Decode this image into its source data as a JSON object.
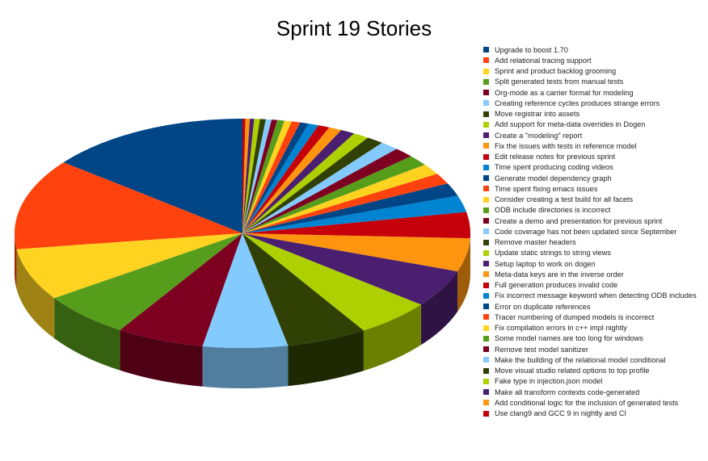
{
  "chart_data": {
    "type": "pie",
    "style": "3d",
    "title": "Sprint 19 Stories",
    "legend_position": "right",
    "categories": [
      "Upgrade to boost 1.70",
      "Add relational tracing support",
      "Sprint and product backlog grooming",
      "Split generated tests from manual tests",
      "Org-mode as a carrier format for modeling",
      "Creating reference cycles produces strange errors",
      "Move registrar into assets",
      "Add support for meta-data overrides in Dogen",
      "Create a \"modeling\" report",
      "Fix the issues with tests in reference model",
      "Edit release notes for previous sprint",
      "Time spent producing coding videos",
      "Generate model dependency graph",
      "Time spent fixing emacs issues",
      "Consider creating a test build for all facets",
      "ODB include directories is incorrect",
      "Create a demo and presentation for previous sprint",
      "Code coverage has not been updated since September",
      "Remove master headers",
      "Update static strings to string views",
      "Setup laptop to work on dogen",
      "Meta-data keys are in the inverse order",
      "Full generation produces invalid code",
      "Fix incorrect message keyword when detecting ODB includes",
      "Error on duplicate references",
      "Tracer numbering of dumped models is incorrect",
      "Fix compilation errors in c++ impl nightly",
      "Some model names are too long for windows",
      "Remove test model sanitizer",
      "Make the building of the relational model conditional",
      "Move visual studio related options to top profile",
      "Fake type in injection.json model",
      "Make all transform contexts code-generated",
      "Add conditional logic for the inclusion of generated tests",
      "Use clang9 and GCC 9 in nightly and CI"
    ],
    "values": [
      14.1,
      12.6,
      7.2,
      6.3,
      6.1,
      5.9,
      5.6,
      5.3,
      5.2,
      4.6,
      3.6,
      2.3,
      1.8,
      1.5,
      1.5,
      1.5,
      1.4,
      1.3,
      1.2,
      1.1,
      1.0,
      0.9,
      0.8,
      0.7,
      0.6,
      0.6,
      0.5,
      0.5,
      0.4,
      0.4,
      0.4,
      0.4,
      0.3,
      0.3,
      0.2
    ],
    "colors": [
      "#004586",
      "#ff420e",
      "#ffd320",
      "#579d1c",
      "#7e0021",
      "#83caff",
      "#314004",
      "#aecf00",
      "#4b1f6f",
      "#ff950e",
      "#c5000b",
      "#0084d1"
    ]
  }
}
